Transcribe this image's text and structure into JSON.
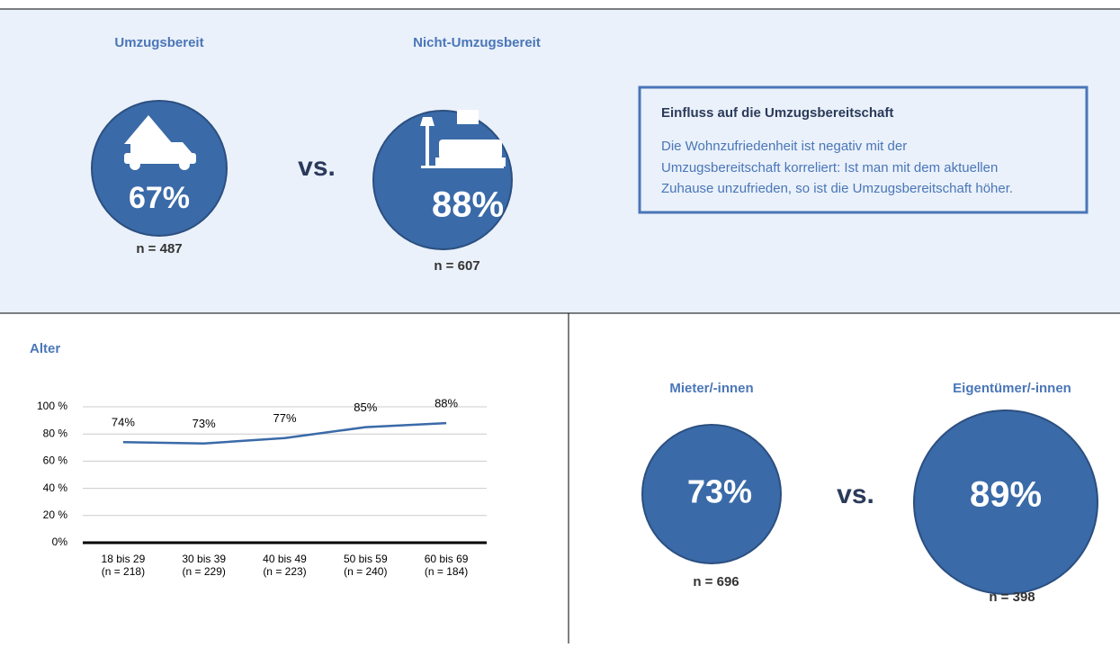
{
  "top": {
    "left": {
      "title": "Umzugsbereit",
      "percent": "67%",
      "n": "n = 487"
    },
    "vs": "vs.",
    "right": {
      "title": "Nicht-Umzugsbereit",
      "percent": "88%",
      "n": "n = 607"
    },
    "box": {
      "title": "Einfluss auf die Umzugsbereitschaft",
      "lines": [
        "Die Wohnzufriedenheit ist negativ mit der",
        "Umzugsbereitschaft korreliert: Ist man mit dem aktuellen",
        "Zuhause unzufrieden, so ist die Umzugsbereitschaft höher."
      ]
    }
  },
  "chart_data": {
    "type": "line",
    "title": "Alter",
    "categories": [
      "18 bis 29",
      "30 bis 39",
      "40 bis 49",
      "50 bis 59",
      "60 bis 69"
    ],
    "category_notes": [
      "(n =  218)",
      "(n =  229)",
      "(n =  223)",
      "(n =  240)",
      "(n =  184)"
    ],
    "values": [
      74,
      73,
      77,
      85,
      88
    ],
    "value_labels": [
      "74%",
      "73%",
      "77%",
      "85%",
      "88%"
    ],
    "color": "#3a6aa8",
    "ylim": [
      0,
      100
    ],
    "yticks": [
      {
        "value": 0,
        "label": "0%"
      },
      {
        "value": 20,
        "label": "20 %"
      },
      {
        "value": 40,
        "label": "40 %"
      },
      {
        "value": 60,
        "label": "60 %"
      },
      {
        "value": 80,
        "label": "80 %"
      },
      {
        "value": 100,
        "label": "100 %"
      }
    ],
    "grid": true
  },
  "bottom": {
    "left": {
      "title": "Mieter/-innen",
      "percent": "73%",
      "n": "n = 696"
    },
    "vs": "vs.",
    "right": {
      "title": "Eigentümer/-innen",
      "percent": "89%",
      "n": "n = 398"
    }
  }
}
